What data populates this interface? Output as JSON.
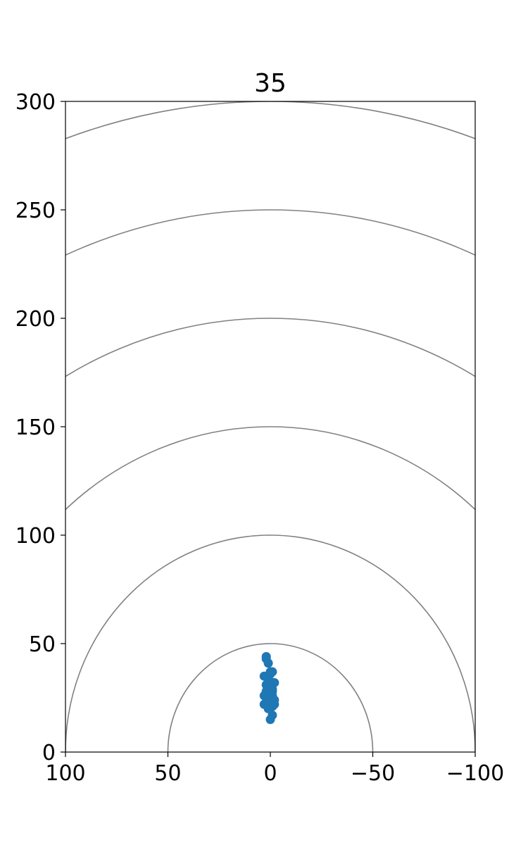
{
  "chart_data": {
    "type": "scatter",
    "title": "35",
    "xlabel": "",
    "ylabel": "",
    "xlim": [
      100,
      -100
    ],
    "ylim": [
      0,
      300
    ],
    "x_ticks": [
      100,
      50,
      0,
      -50,
      -100
    ],
    "x_tick_labels": [
      "100",
      "50",
      "0",
      "−50",
      "−100"
    ],
    "y_ticks": [
      0,
      50,
      100,
      150,
      200,
      250,
      300
    ],
    "y_tick_labels": [
      "0",
      "50",
      "100",
      "150",
      "200",
      "250",
      "300"
    ],
    "range_rings": [
      50,
      100,
      150,
      200,
      250,
      300
    ],
    "grid": false,
    "colors": {
      "points": "#1f77b4",
      "rings": "#808080",
      "axes": "#000000"
    },
    "series": [
      {
        "x": [
          2,
          2,
          1,
          -1,
          0,
          0,
          1,
          -1,
          -2,
          2,
          1,
          0,
          -1,
          2,
          -1,
          1,
          1,
          0,
          3,
          -1,
          0,
          0,
          2,
          -2,
          1,
          2,
          3,
          -1,
          -1,
          0,
          1,
          -1,
          1,
          3,
          0,
          -2
        ],
        "y": [
          44,
          43,
          41,
          37,
          37,
          36,
          34,
          32,
          32,
          31,
          30,
          30,
          29,
          28,
          28,
          27,
          27,
          27,
          26,
          26,
          26,
          25,
          25,
          24,
          24,
          23,
          22,
          21,
          17,
          15,
          20,
          24,
          33,
          35,
          29,
          22
        ]
      }
    ]
  }
}
